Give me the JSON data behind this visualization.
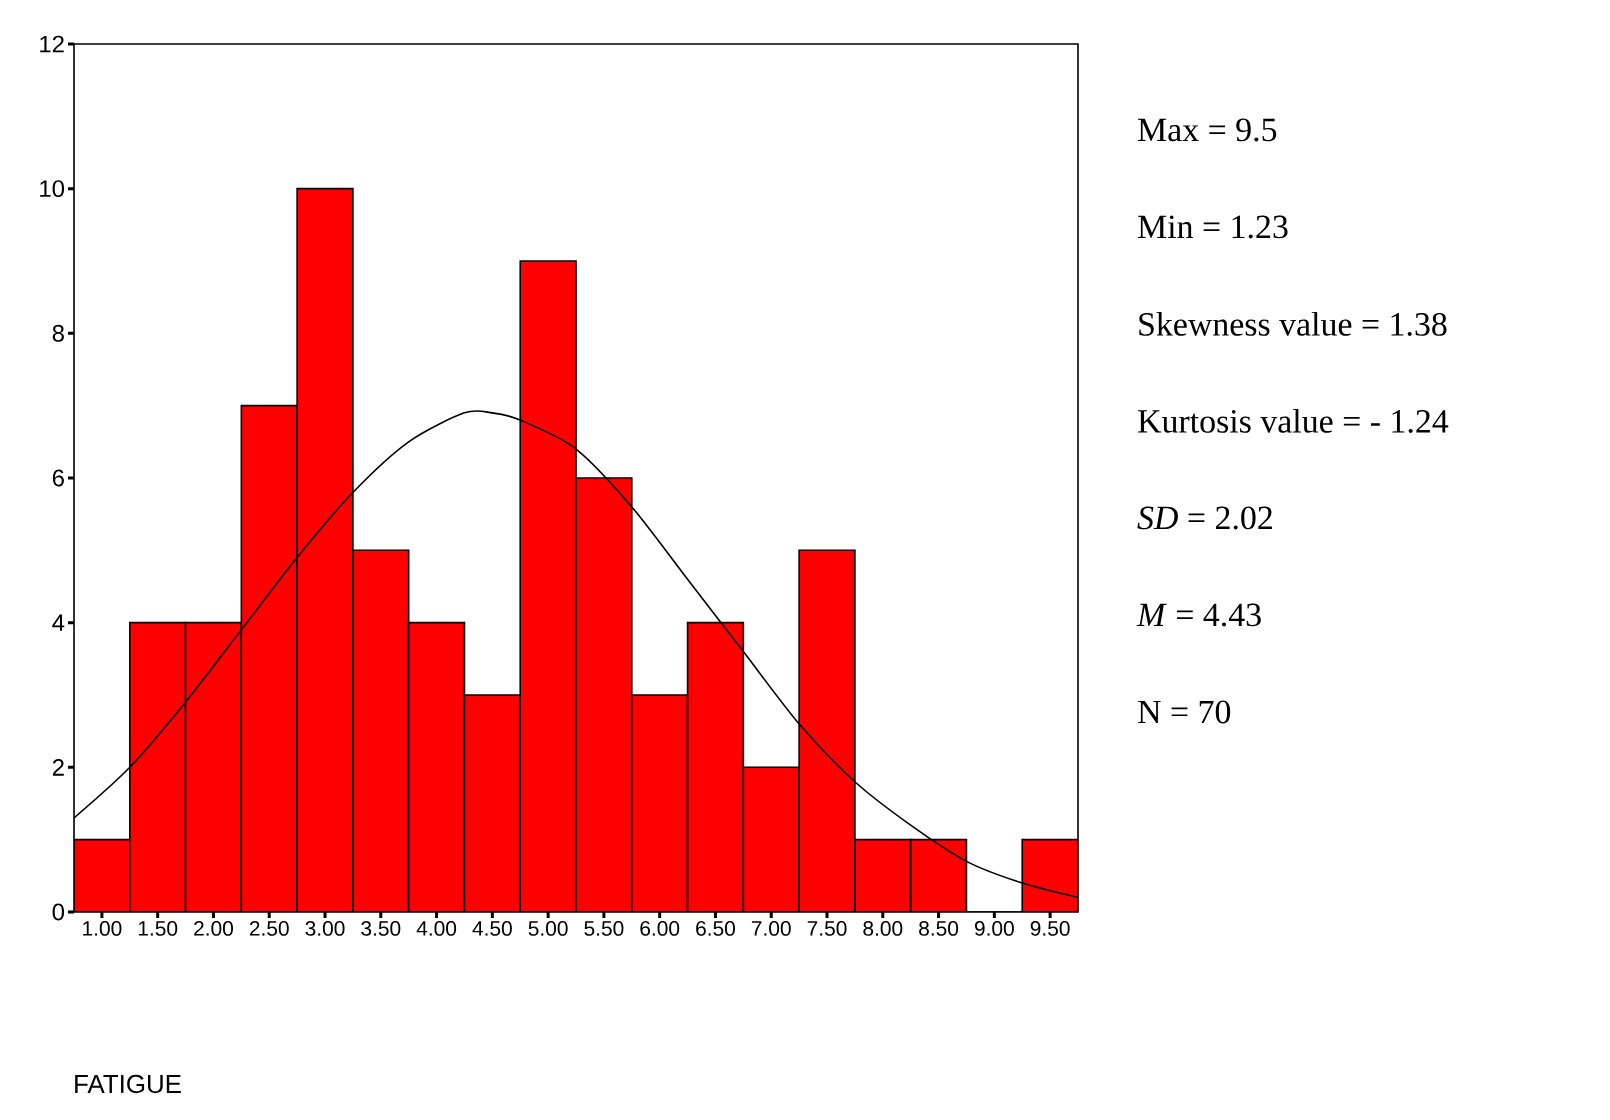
{
  "chart_data": {
    "type": "histogram",
    "bins": [
      0.75,
      1.25,
      1.75,
      2.25,
      2.75,
      3.25,
      3.75,
      4.25,
      4.75,
      5.25,
      5.75,
      6.25,
      6.75,
      7.25,
      7.75,
      8.25,
      8.75,
      9.25,
      9.75
    ],
    "values": [
      1,
      4,
      4,
      7,
      10,
      5,
      4,
      3,
      9,
      6,
      3,
      4,
      2,
      5,
      1,
      1,
      0,
      1
    ],
    "color": "#ff0000",
    "series": [
      {
        "type": "line",
        "color": "#000000",
        "x": [
          0.75,
          1.25,
          1.75,
          2.25,
          2.75,
          3.25,
          3.75,
          4.25,
          4.5,
          4.75,
          5.25,
          5.75,
          6.25,
          6.75,
          7.25,
          7.75,
          8.25,
          8.75,
          9.25,
          9.75
        ],
        "values": [
          1.3,
          2.0,
          2.9,
          3.9,
          4.9,
          5.8,
          6.5,
          6.9,
          6.9,
          6.8,
          6.4,
          5.6,
          4.6,
          3.6,
          2.6,
          1.8,
          1.2,
          0.7,
          0.4,
          0.2
        ]
      }
    ],
    "xlim": [
      0.75,
      9.75
    ],
    "ylim": [
      0,
      12
    ],
    "xticks": [
      {
        "value": 1,
        "label": "1.00"
      },
      {
        "value": 1.5,
        "label": "1.50"
      },
      {
        "value": 2,
        "label": "2.00"
      },
      {
        "value": 2.5,
        "label": "2.50"
      },
      {
        "value": 3,
        "label": "3.00"
      },
      {
        "value": 3.5,
        "label": "3.50"
      },
      {
        "value": 4,
        "label": "4.00"
      },
      {
        "value": 4.5,
        "label": "4.50"
      },
      {
        "value": 5,
        "label": "5.00"
      },
      {
        "value": 5.5,
        "label": "5.50"
      },
      {
        "value": 6,
        "label": "6.00"
      },
      {
        "value": 6.5,
        "label": "6.50"
      },
      {
        "value": 7,
        "label": "7.00"
      },
      {
        "value": 7.5,
        "label": "7.50"
      },
      {
        "value": 8,
        "label": "8.00"
      },
      {
        "value": 8.5,
        "label": "8.50"
      },
      {
        "value": 9,
        "label": "9.00"
      },
      {
        "value": 9.5,
        "label": "9.50"
      }
    ],
    "yticks": [
      0,
      2,
      4,
      6,
      8,
      10,
      12
    ],
    "grid": false,
    "annotations": [
      "Max = 9.5",
      "Min = 1.23",
      "Skewness value  =  1.38",
      "Kurtosis value  = - 1.24",
      "*SD* = 2.02",
      "*M* = 4.43",
      "N = 70",
      "FATIGUE"
    ]
  }
}
